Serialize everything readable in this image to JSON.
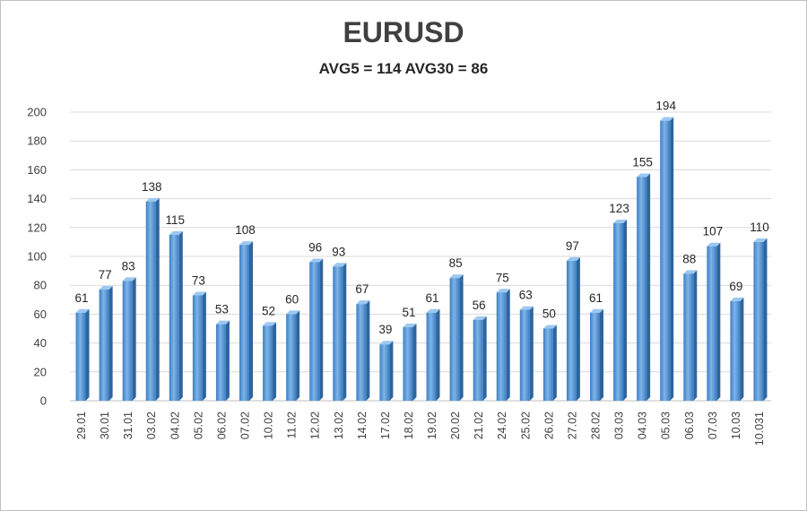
{
  "chart_data": {
    "type": "bar",
    "title": "EURUSD",
    "subtitle": "AVG5 = 114 AVG30 = 86",
    "xlabel": "",
    "ylabel": "",
    "ylim": [
      0,
      200
    ],
    "yticks": [
      "0",
      "20",
      "40",
      "60",
      "80",
      "100",
      "120",
      "140",
      "160",
      "180",
      "200"
    ],
    "grid": true,
    "categories": [
      "29.01",
      "30.01",
      "31.01",
      "03.02",
      "04.02",
      "05.02",
      "06.02",
      "07.02",
      "10.02",
      "11.02",
      "12.02",
      "13.02",
      "14.02",
      "17.02",
      "18.02",
      "19.02",
      "20.02",
      "21.02",
      "24.02",
      "25.02",
      "26.02",
      "27.02",
      "28.02",
      "03.03",
      "04.03",
      "05.03",
      "06.03",
      "07.03",
      "10.03",
      "10.031"
    ],
    "values": [
      61,
      77,
      83,
      138,
      115,
      73,
      53,
      108,
      52,
      60,
      96,
      93,
      67,
      39,
      51,
      61,
      85,
      56,
      75,
      63,
      50,
      97,
      61,
      123,
      155,
      194,
      88,
      107,
      69,
      110
    ],
    "bar_color": "#4f93d2"
  }
}
